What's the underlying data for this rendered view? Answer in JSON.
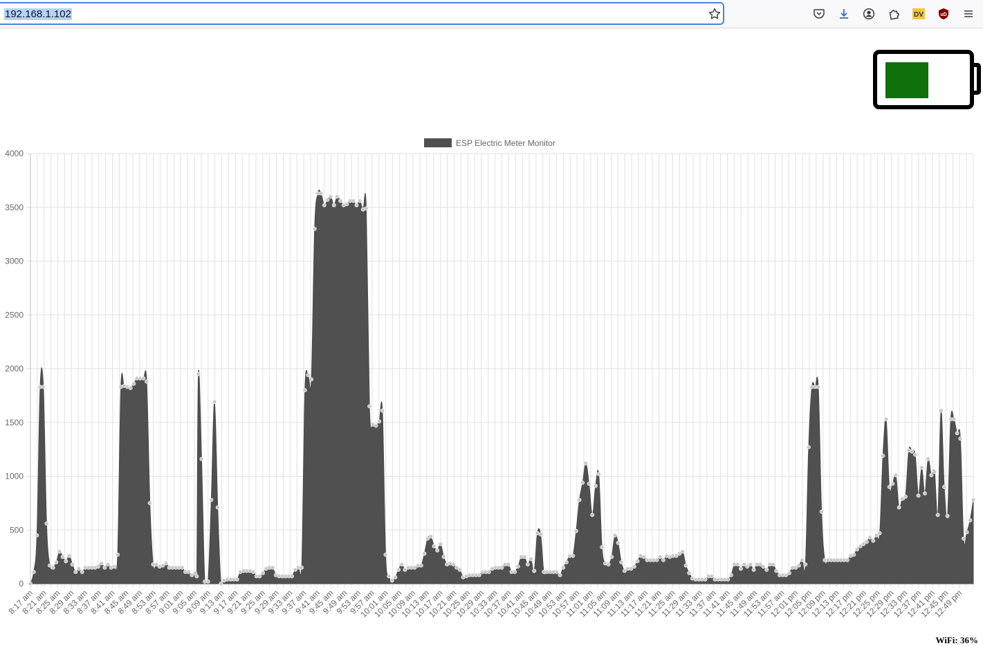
{
  "browser": {
    "url": "192.168.1.102",
    "icons": [
      "star-icon",
      "pocket-icon",
      "download-icon",
      "account-icon",
      "extensions-icon",
      "dv-extension-icon",
      "ublock-icon",
      "menu-icon"
    ],
    "dv_label": "DV",
    "ublock_label": "uD"
  },
  "battery": {
    "fill_fraction": 0.46,
    "fill_color": "#0f700b"
  },
  "wifi_text": "WiFi: 36%",
  "chart_data": {
    "type": "area",
    "legend": {
      "label": "ESP Electric Meter Monitor",
      "position": "top"
    },
    "color": "#505050",
    "grid": true,
    "ylim": [
      0,
      4000
    ],
    "y_ticks": [
      0,
      500,
      1000,
      1500,
      2000,
      2500,
      3000,
      3500,
      4000
    ],
    "x_labels": [
      "8:17 am",
      "8:21 am",
      "8:25 am",
      "8:29 am",
      "8:33 am",
      "8:37 am",
      "8:41 am",
      "8:45 am",
      "8:49 am",
      "8:53 am",
      "8:57 am",
      "9:01 am",
      "9:05 am",
      "9:09 am",
      "9:13 am",
      "9:17 am",
      "9:21 am",
      "9:25 am",
      "9:29 am",
      "9:33 am",
      "9:37 am",
      "9:41 am",
      "9:45 am",
      "9:49 am",
      "9:53 am",
      "9:57 am",
      "10:01 am",
      "10:05 am",
      "10:09 am",
      "10:13 am",
      "10:17 am",
      "10:21 am",
      "10:25 am",
      "10:29 am",
      "10:33 am",
      "10:37 am",
      "10:41 am",
      "10:45 am",
      "10:49 am",
      "10:53 am",
      "10:57 am",
      "11:01 am",
      "11:05 am",
      "11:09 am",
      "11:13 am",
      "11:17 am",
      "11:21 am",
      "11:25 am",
      "11:29 am",
      "11:33 am",
      "11:37 am",
      "11:41 am",
      "11:45 am",
      "11:49 am",
      "11:53 am",
      "11:57 am",
      "12:01 pm",
      "12:05 pm",
      "12:09 pm",
      "12:13 pm",
      "12:17 pm",
      "12:21 pm",
      "12:25 pm",
      "12:29 pm",
      "12:33 pm",
      "12:37 pm",
      "12:41 pm",
      "12:45 pm",
      "12:49 pm"
    ],
    "x_range_minutes": [
      0,
      276
    ],
    "points": [
      [
        0,
        0
      ],
      [
        1,
        110
      ],
      [
        2,
        450
      ],
      [
        3,
        1830
      ],
      [
        4,
        1830
      ],
      [
        5,
        560
      ],
      [
        6,
        170
      ],
      [
        7,
        150
      ],
      [
        8,
        200
      ],
      [
        9,
        300
      ],
      [
        10,
        250
      ],
      [
        11,
        210
      ],
      [
        12,
        260
      ],
      [
        13,
        180
      ],
      [
        14,
        110
      ],
      [
        15,
        140
      ],
      [
        16,
        110
      ],
      [
        17,
        150
      ],
      [
        18,
        150
      ],
      [
        19,
        150
      ],
      [
        20,
        150
      ],
      [
        21,
        160
      ],
      [
        22,
        190
      ],
      [
        23,
        150
      ],
      [
        24,
        180
      ],
      [
        25,
        150
      ],
      [
        26,
        160
      ],
      [
        27,
        270
      ],
      [
        28,
        1830
      ],
      [
        29,
        1840
      ],
      [
        30,
        1830
      ],
      [
        31,
        1820
      ],
      [
        32,
        1860
      ],
      [
        33,
        1910
      ],
      [
        34,
        1910
      ],
      [
        35,
        1910
      ],
      [
        36,
        1880
      ],
      [
        37,
        750
      ],
      [
        38,
        180
      ],
      [
        39,
        180
      ],
      [
        40,
        160
      ],
      [
        41,
        170
      ],
      [
        42,
        190
      ],
      [
        43,
        150
      ],
      [
        44,
        150
      ],
      [
        45,
        150
      ],
      [
        46,
        150
      ],
      [
        47,
        150
      ],
      [
        48,
        110
      ],
      [
        49,
        110
      ],
      [
        50,
        80
      ],
      [
        51,
        100
      ],
      [
        51.5,
        70
      ],
      [
        52,
        1950
      ],
      [
        53,
        1160
      ],
      [
        54,
        20
      ],
      [
        55,
        20
      ],
      [
        56,
        780
      ],
      [
        57,
        1690
      ],
      [
        58,
        710
      ],
      [
        59,
        0
      ],
      [
        60,
        30
      ],
      [
        61,
        40
      ],
      [
        62,
        40
      ],
      [
        63,
        40
      ],
      [
        64,
        40
      ],
      [
        65,
        110
      ],
      [
        66,
        120
      ],
      [
        67,
        120
      ],
      [
        68,
        120
      ],
      [
        69,
        110
      ],
      [
        70,
        70
      ],
      [
        71,
        70
      ],
      [
        72,
        100
      ],
      [
        73,
        140
      ],
      [
        74,
        150
      ],
      [
        75,
        150
      ],
      [
        76,
        80
      ],
      [
        77,
        70
      ],
      [
        78,
        70
      ],
      [
        79,
        70
      ],
      [
        80,
        70
      ],
      [
        81,
        70
      ],
      [
        82,
        130
      ],
      [
        83,
        150
      ],
      [
        84,
        150
      ],
      [
        85,
        1800
      ],
      [
        86,
        1940
      ],
      [
        87,
        1900
      ],
      [
        88,
        3300
      ],
      [
        89,
        3630
      ],
      [
        90,
        3630
      ],
      [
        91,
        3520
      ],
      [
        92,
        3570
      ],
      [
        93,
        3600
      ],
      [
        94,
        3520
      ],
      [
        95,
        3600
      ],
      [
        96,
        3560
      ],
      [
        97,
        3520
      ],
      [
        98,
        3530
      ],
      [
        99,
        3560
      ],
      [
        100,
        3560
      ],
      [
        101,
        3520
      ],
      [
        102,
        3560
      ],
      [
        103,
        3480
      ],
      [
        104,
        3490
      ],
      [
        105,
        1650
      ],
      [
        106,
        1480
      ],
      [
        107,
        1470
      ],
      [
        108,
        1510
      ],
      [
        109,
        1610
      ],
      [
        110,
        270
      ],
      [
        111,
        70
      ],
      [
        112,
        30
      ],
      [
        113,
        60
      ],
      [
        114,
        130
      ],
      [
        115,
        180
      ],
      [
        116,
        130
      ],
      [
        117,
        150
      ],
      [
        118,
        150
      ],
      [
        119,
        150
      ],
      [
        120,
        170
      ],
      [
        121,
        170
      ],
      [
        122,
        280
      ],
      [
        123,
        420
      ],
      [
        124,
        440
      ],
      [
        125,
        350
      ],
      [
        126,
        310
      ],
      [
        127,
        370
      ],
      [
        128,
        250
      ],
      [
        129,
        180
      ],
      [
        130,
        190
      ],
      [
        131,
        180
      ],
      [
        132,
        150
      ],
      [
        133,
        130
      ],
      [
        134,
        60
      ],
      [
        135,
        70
      ],
      [
        136,
        80
      ],
      [
        137,
        80
      ],
      [
        138,
        80
      ],
      [
        139,
        80
      ],
      [
        140,
        110
      ],
      [
        141,
        110
      ],
      [
        142,
        110
      ],
      [
        143,
        140
      ],
      [
        144,
        150
      ],
      [
        145,
        150
      ],
      [
        146,
        150
      ],
      [
        147,
        180
      ],
      [
        148,
        180
      ],
      [
        149,
        110
      ],
      [
        150,
        110
      ],
      [
        151,
        160
      ],
      [
        152,
        250
      ],
      [
        153,
        250
      ],
      [
        154,
        180
      ],
      [
        155,
        230
      ],
      [
        156,
        120
      ],
      [
        157,
        470
      ],
      [
        158,
        460
      ],
      [
        159,
        110
      ],
      [
        160,
        110
      ],
      [
        161,
        110
      ],
      [
        162,
        110
      ],
      [
        163,
        110
      ],
      [
        164,
        80
      ],
      [
        165,
        150
      ],
      [
        166,
        200
      ],
      [
        167,
        260
      ],
      [
        168,
        260
      ],
      [
        169,
        490
      ],
      [
        170,
        780
      ],
      [
        171,
        940
      ],
      [
        172,
        1120
      ],
      [
        173,
        930
      ],
      [
        174,
        640
      ],
      [
        175,
        910
      ],
      [
        176,
        1020
      ],
      [
        177,
        340
      ],
      [
        178,
        190
      ],
      [
        179,
        180
      ],
      [
        180,
        250
      ],
      [
        181,
        450
      ],
      [
        182,
        380
      ],
      [
        183,
        200
      ],
      [
        184,
        120
      ],
      [
        185,
        140
      ],
      [
        186,
        140
      ],
      [
        187,
        160
      ],
      [
        188,
        210
      ],
      [
        189,
        260
      ],
      [
        190,
        250
      ],
      [
        191,
        220
      ],
      [
        192,
        220
      ],
      [
        193,
        220
      ],
      [
        194,
        220
      ],
      [
        195,
        250
      ],
      [
        196,
        220
      ],
      [
        197,
        260
      ],
      [
        198,
        250
      ],
      [
        199,
        260
      ],
      [
        200,
        260
      ],
      [
        201,
        280
      ],
      [
        202,
        300
      ],
      [
        203,
        170
      ],
      [
        204,
        100
      ],
      [
        205,
        50
      ],
      [
        206,
        40
      ],
      [
        207,
        40
      ],
      [
        208,
        40
      ],
      [
        209,
        40
      ],
      [
        210,
        70
      ],
      [
        211,
        70
      ],
      [
        212,
        40
      ],
      [
        213,
        40
      ],
      [
        214,
        40
      ],
      [
        215,
        40
      ],
      [
        216,
        40
      ],
      [
        217,
        80
      ],
      [
        218,
        180
      ],
      [
        219,
        180
      ],
      [
        220,
        140
      ],
      [
        221,
        180
      ],
      [
        222,
        160
      ],
      [
        223,
        180
      ],
      [
        224,
        130
      ],
      [
        225,
        180
      ],
      [
        226,
        180
      ],
      [
        227,
        160
      ],
      [
        228,
        130
      ],
      [
        229,
        180
      ],
      [
        230,
        180
      ],
      [
        231,
        120
      ],
      [
        232,
        80
      ],
      [
        233,
        80
      ],
      [
        234,
        80
      ],
      [
        235,
        100
      ],
      [
        236,
        150
      ],
      [
        237,
        150
      ],
      [
        238,
        170
      ],
      [
        239,
        220
      ],
      [
        240,
        180
      ],
      [
        241,
        1270
      ],
      [
        242,
        1830
      ],
      [
        243,
        1830
      ],
      [
        244,
        1830
      ],
      [
        245,
        670
      ],
      [
        246,
        220
      ],
      [
        247,
        220
      ],
      [
        248,
        220
      ],
      [
        249,
        220
      ],
      [
        250,
        220
      ],
      [
        251,
        220
      ],
      [
        252,
        220
      ],
      [
        253,
        220
      ],
      [
        254,
        260
      ],
      [
        255,
        270
      ],
      [
        256,
        320
      ],
      [
        257,
        350
      ],
      [
        258,
        370
      ],
      [
        259,
        390
      ],
      [
        260,
        430
      ],
      [
        261,
        400
      ],
      [
        262,
        450
      ],
      [
        263,
        470
      ],
      [
        264,
        1190
      ],
      [
        265,
        1530
      ],
      [
        266,
        900
      ],
      [
        267,
        930
      ],
      [
        268,
        1010
      ],
      [
        269,
        710
      ],
      [
        270,
        790
      ],
      [
        271,
        810
      ],
      [
        272,
        1240
      ],
      [
        273,
        1230
      ],
      [
        274,
        1200
      ],
      [
        275,
        820
      ],
      [
        276,
        1080
      ],
      [
        277,
        840
      ],
      [
        278,
        1160
      ],
      [
        279,
        1010
      ],
      [
        280,
        1040
      ],
      [
        281,
        640
      ],
      [
        282,
        1610
      ],
      [
        283,
        900
      ],
      [
        284,
        630
      ],
      [
        285,
        1530
      ],
      [
        286,
        1530
      ],
      [
        287,
        1400
      ],
      [
        288,
        1350
      ],
      [
        289,
        420
      ],
      [
        290,
        480
      ],
      [
        291,
        590
      ],
      [
        292,
        780
      ]
    ],
    "x_max_index": 292
  }
}
